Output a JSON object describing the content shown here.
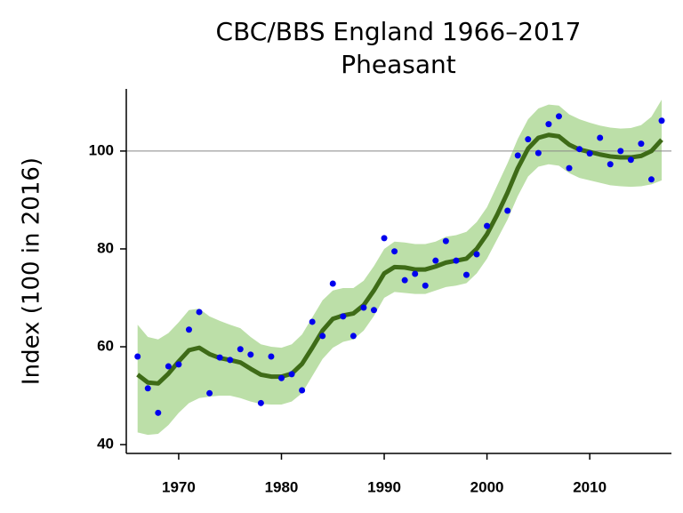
{
  "chart_data": {
    "type": "trend",
    "title": "CBC/BBS England 1966–2017",
    "subtitle": "Pheasant",
    "y_label": "Index (100 in 2016)",
    "x": [
      1966,
      1967,
      1968,
      1969,
      1970,
      1971,
      1972,
      1973,
      1974,
      1975,
      1976,
      1977,
      1978,
      1979,
      1980,
      1981,
      1982,
      1983,
      1984,
      1985,
      1986,
      1987,
      1988,
      1989,
      1990,
      1991,
      1992,
      1993,
      1994,
      1995,
      1996,
      1997,
      1998,
      1999,
      2000,
      2001,
      2002,
      2003,
      2004,
      2005,
      2006,
      2007,
      2008,
      2009,
      2010,
      2011,
      2012,
      2013,
      2014,
      2015,
      2016,
      2017
    ],
    "values": [
      58.0,
      51.5,
      46.5,
      56.0,
      56.4,
      63.5,
      67.1,
      50.5,
      57.8,
      57.3,
      59.5,
      58.4,
      48.5,
      58.0,
      53.6,
      54.4,
      51.1,
      65.1,
      62.2,
      72.9,
      66.2,
      62.2,
      68.0,
      67.5,
      82.2,
      79.5,
      73.6,
      74.9,
      72.5,
      77.6,
      81.6,
      77.6,
      74.7,
      78.9,
      84.7,
      null,
      87.8,
      99.1,
      102.4,
      99.6,
      105.5,
      107.1,
      96.5,
      100.4,
      99.5,
      102.7,
      97.3,
      100.0,
      98.2,
      101.5,
      94.2,
      106.2
    ],
    "trend": [
      54.3,
      52.7,
      52.5,
      54.5,
      57.0,
      59.3,
      59.8,
      58.5,
      57.7,
      57.3,
      56.8,
      55.5,
      54.3,
      53.9,
      53.9,
      54.5,
      56.5,
      59.8,
      63.3,
      65.7,
      66.4,
      66.8,
      68.5,
      71.5,
      75.0,
      76.3,
      76.2,
      75.8,
      75.8,
      76.4,
      77.2,
      77.6,
      78.0,
      80.0,
      83.0,
      87.0,
      91.5,
      96.5,
      100.5,
      102.7,
      103.3,
      103.0,
      101.3,
      100.3,
      99.8,
      99.3,
      98.9,
      98.7,
      98.7,
      99.0,
      100.0,
      102.3
    ],
    "upper": [
      64.5,
      62.0,
      61.5,
      62.8,
      65.0,
      67.5,
      67.8,
      66.2,
      65.3,
      64.5,
      63.8,
      62.0,
      60.5,
      60.0,
      59.8,
      60.5,
      62.5,
      66.0,
      69.5,
      71.5,
      72.0,
      72.0,
      73.5,
      76.5,
      80.0,
      81.5,
      81.3,
      81.0,
      81.0,
      81.5,
      82.5,
      82.8,
      83.5,
      85.5,
      88.5,
      93.0,
      97.5,
      102.5,
      106.5,
      108.7,
      109.5,
      109.3,
      107.5,
      106.5,
      105.8,
      105.2,
      104.8,
      104.6,
      104.7,
      105.3,
      107.0,
      110.5
    ],
    "lower": [
      42.5,
      42.0,
      42.2,
      44.0,
      46.5,
      48.5,
      49.5,
      49.8,
      50.0,
      50.0,
      49.5,
      48.8,
      48.3,
      48.2,
      48.2,
      48.8,
      50.5,
      54.0,
      57.5,
      59.8,
      61.0,
      61.5,
      63.3,
      66.3,
      70.0,
      71.2,
      71.0,
      70.8,
      70.8,
      71.5,
      72.2,
      72.5,
      73.0,
      75.0,
      78.0,
      82.0,
      86.0,
      90.8,
      94.8,
      96.8,
      97.3,
      97.0,
      95.5,
      94.5,
      94.0,
      93.5,
      93.0,
      92.8,
      92.7,
      92.8,
      93.2,
      94.0
    ],
    "point_color": "#0000ee",
    "trend_color": "#3e6b17",
    "band_color": "#bcdfa8",
    "reference_line": 100,
    "xlim": [
      1964.9,
      2017.95
    ],
    "ylim": [
      38.2,
      112.7
    ],
    "xticks": [
      1970,
      1980,
      1990,
      2000,
      2010
    ],
    "yticks": [
      40,
      60,
      80,
      100
    ]
  }
}
